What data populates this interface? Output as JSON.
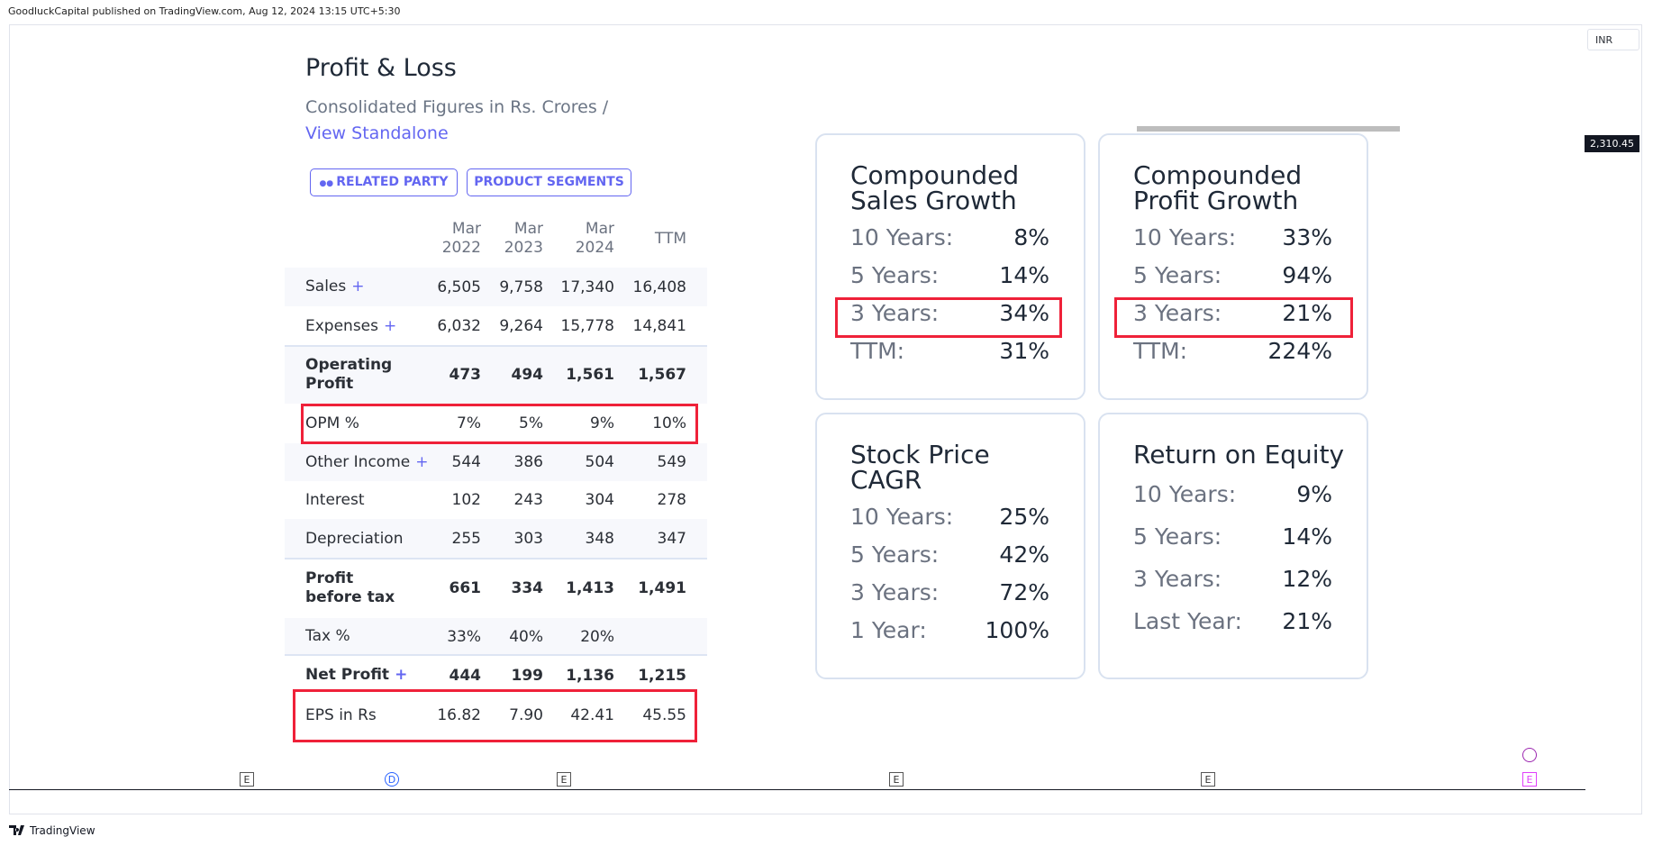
{
  "header": {
    "published": "GoodluckCapital published on TradingView.com, Aug 12, 2024 13:15 UTC+5:30",
    "currency": "INR",
    "price": "2,310.45"
  },
  "pnl": {
    "title": "Profit & Loss",
    "subtitle": "Consolidated Figures in Rs. Crores /",
    "link": "View Standalone",
    "buttons": [
      "RELATED PARTY",
      "PRODUCT SEGMENTS"
    ],
    "columns": [
      "Mar 2022",
      "Mar 2023",
      "Mar 2024",
      "TTM"
    ],
    "rows": [
      {
        "label": "Sales",
        "toggle": "+",
        "values": [
          "6,505",
          "9,758",
          "17,340",
          "16,408"
        ]
      },
      {
        "label": "Expenses",
        "toggle": "+",
        "values": [
          "6,032",
          "9,264",
          "15,778",
          "14,841"
        ]
      },
      {
        "label": "Operating Profit",
        "bold": true,
        "values": [
          "473",
          "494",
          "1,561",
          "1,567"
        ]
      },
      {
        "label": "OPM %",
        "values": [
          "7%",
          "5%",
          "9%",
          "10%"
        ]
      },
      {
        "label": "Other Income",
        "toggle": "+",
        "values": [
          "544",
          "386",
          "504",
          "549"
        ]
      },
      {
        "label": "Interest",
        "values": [
          "102",
          "243",
          "304",
          "278"
        ]
      },
      {
        "label": "Depreciation",
        "values": [
          "255",
          "303",
          "348",
          "347"
        ]
      },
      {
        "label": "Profit before tax",
        "bold": true,
        "values": [
          "661",
          "334",
          "1,413",
          "1,491"
        ]
      },
      {
        "label": "Tax %",
        "values": [
          "33%",
          "40%",
          "20%"
        ]
      },
      {
        "label": "Net Profit",
        "toggle": "+",
        "bold": true,
        "values": [
          "444",
          "199",
          "1,136",
          "1,215"
        ]
      },
      {
        "label": "EPS in Rs",
        "values": [
          "16.82",
          "7.90",
          "42.41",
          "45.55"
        ]
      }
    ]
  },
  "cards": [
    {
      "title": "Compounded Sales Growth",
      "rows": [
        [
          "10 Years:",
          "8%"
        ],
        [
          "5 Years:",
          "14%"
        ],
        [
          "3 Years:",
          "34%"
        ],
        [
          "TTM:",
          "31%"
        ]
      ]
    },
    {
      "title": "Compounded Profit Growth",
      "rows": [
        [
          "10 Years:",
          "33%"
        ],
        [
          "5 Years:",
          "94%"
        ],
        [
          "3 Years:",
          "21%"
        ],
        [
          "TTM:",
          "224%"
        ]
      ]
    },
    {
      "title": "Stock Price CAGR",
      "rows": [
        [
          "10 Years:",
          "25%"
        ],
        [
          "5 Years:",
          "42%"
        ],
        [
          "3 Years:",
          "72%"
        ],
        [
          "1 Year:",
          "100%"
        ]
      ]
    },
    {
      "title": "Return on Equity",
      "rows": [
        [
          "10 Years:",
          "9%"
        ],
        [
          "5 Years:",
          "14%"
        ],
        [
          "3 Years:",
          "12%"
        ],
        [
          "Last Year:",
          "21%"
        ]
      ]
    }
  ],
  "markers": [
    "E",
    "D",
    "E",
    "E",
    "E",
    "E"
  ],
  "footer": "TradingView"
}
